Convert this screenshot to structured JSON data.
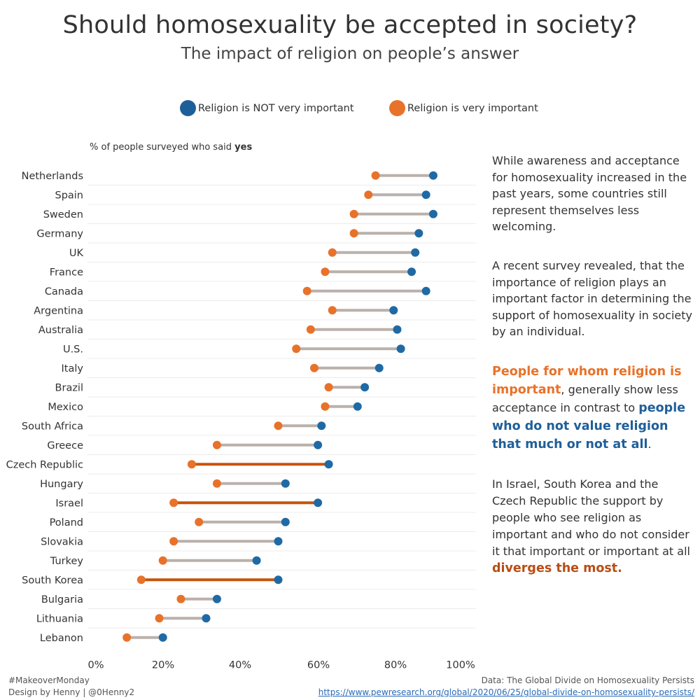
{
  "header": {
    "title": "Should homosexuality be accepted in society?",
    "subtitle": "The impact of religion on people’s answer"
  },
  "legend": {
    "not_important": {
      "label": "Religion is NOT very important",
      "color": "#1f6aa5"
    },
    "important": {
      "label": "Religion is very important",
      "color": "#e8722a"
    }
  },
  "axis": {
    "caption_prefix": "% of people surveyed who said ",
    "caption_bold": "yes"
  },
  "chart_data": {
    "type": "dumbbell",
    "categories": [
      "Netherlands",
      "Spain",
      "Sweden",
      "Germany",
      "UK",
      "France",
      "Canada",
      "Argentina",
      "Australia",
      "U.S.",
      "Italy",
      "Brazil",
      "Mexico",
      "South Africa",
      "Greece",
      "Czech Republic",
      "Hungary",
      "Israel",
      "Poland",
      "Slovakia",
      "Turkey",
      "South Korea",
      "Bulgaria",
      "Lithuania",
      "Lebanon"
    ],
    "series": [
      {
        "name": "Religion is NOT very important",
        "color": "#1f6aa5",
        "values": [
          93,
          91,
          93,
          89,
          88,
          87,
          91,
          82,
          83,
          84,
          78,
          74,
          72,
          62,
          61,
          64,
          52,
          61,
          52,
          50,
          44,
          50,
          33,
          30,
          18
        ]
      },
      {
        "name": "Religion is very important",
        "color": "#e8722a",
        "values": [
          77,
          75,
          71,
          71,
          65,
          63,
          58,
          65,
          59,
          55,
          60,
          64,
          63,
          50,
          33,
          26,
          33,
          21,
          28,
          21,
          18,
          12,
          23,
          17,
          8
        ]
      }
    ],
    "highlighted": [
      "Czech Republic",
      "Israel",
      "South Korea"
    ],
    "connector_color": "#bab0ac",
    "highlight_color": "#c7540c",
    "xlim": [
      0,
      100
    ],
    "xticks": [
      "0%",
      "20%",
      "40%",
      "60%",
      "80%",
      "100%"
    ],
    "xlabel": "% of people surveyed who said yes",
    "grid": "horizontal row separators"
  },
  "story": {
    "p1": "While awareness and acceptance for homosexuality increased in the past years, some countries still represent themselves less welcoming.",
    "p2": "A recent survey revealed, that the importance of religion plays an important factor in determining the support of homosexuality in society by an individual.",
    "p3_orange": "People for whom religion is important",
    "p3_mid": ", generally show less acceptance in contrast to ",
    "p3_blue": "people who do not value religion that much or not at all",
    "p3_end": ".",
    "p4_text": "In Israel, South Korea and the Czech Republic the support by people who see religion as important and who do not consider it that important or important at all ",
    "p4_highlight": "diverges the most.",
    "colors": {
      "orange": "#e8722a",
      "blue": "#1f5f99",
      "rust": "#b84d14"
    }
  },
  "footer": {
    "hashtag": "#MakeoverMonday",
    "credit": "Design by Henny | @0Henny2",
    "source": "Data: The Global Divide on Homosexuality Persists",
    "url": "https://www.pewresearch.org/global/2020/06/25/global-divide-on-homosexuality-persists/"
  }
}
